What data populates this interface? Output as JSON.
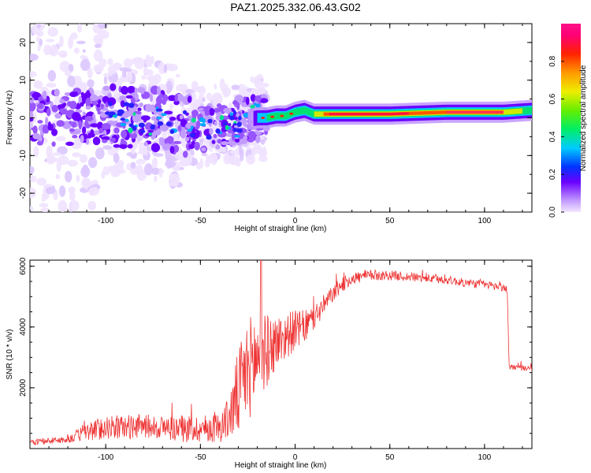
{
  "title": "PAZ1.2025.332.06.43.G02",
  "chart_data": [
    {
      "type": "heatmap",
      "xlabel": "Height of straight line (km)",
      "ylabel": "Frequency (Hz)",
      "xlim": [
        -140,
        125
      ],
      "ylim": [
        -25,
        25
      ],
      "xticks": [
        -100,
        -50,
        0,
        50,
        100
      ],
      "yticks": [
        -20,
        -10,
        0,
        10,
        20
      ],
      "xtick_labels": [
        "-100",
        "-50",
        "0",
        "50",
        "100"
      ],
      "ytick_labels": [
        "-20",
        "-10",
        "0",
        "10",
        "20"
      ],
      "colorbar": {
        "label": "Normalized spectral amplitude",
        "range": [
          0,
          1
        ],
        "ticks": [
          0.0,
          0.2,
          0.4,
          0.6,
          0.8
        ],
        "tick_labels": [
          "0.0",
          "0.2",
          "0.4",
          "0.6",
          "0.8"
        ]
      },
      "ridge": [
        {
          "x": -140,
          "y": 0.0
        },
        {
          "x": -120,
          "y": 0.0
        },
        {
          "x": -100,
          "y": 0.5
        },
        {
          "x": -80,
          "y": 0.0
        },
        {
          "x": -60,
          "y": -2.0
        },
        {
          "x": -45,
          "y": -2.5
        },
        {
          "x": -30,
          "y": -1.0
        },
        {
          "x": -20,
          "y": 0.0
        },
        {
          "x": -15,
          "y": 0.0
        },
        {
          "x": -10,
          "y": 0.5
        },
        {
          "x": -5,
          "y": 0.5
        },
        {
          "x": 0,
          "y": 1.5
        },
        {
          "x": 5,
          "y": 2.0
        },
        {
          "x": 10,
          "y": 1.0
        },
        {
          "x": 50,
          "y": 1.0
        },
        {
          "x": 80,
          "y": 1.5
        },
        {
          "x": 110,
          "y": 1.5
        },
        {
          "x": 125,
          "y": 2.0
        }
      ]
    },
    {
      "type": "line",
      "xlabel": "Height of straight line (km)",
      "ylabel": "SNR (10 * v/v)",
      "xlim": [
        -140,
        125
      ],
      "ylim": [
        0,
        6200
      ],
      "xticks": [
        -100,
        -50,
        0,
        50,
        100
      ],
      "yticks": [
        2000,
        4000,
        6000
      ],
      "xtick_labels": [
        "-100",
        "-50",
        "0",
        "50",
        "100"
      ],
      "ytick_labels": [
        "2000",
        "4000",
        "6000"
      ],
      "color": "#ee3333",
      "series": [
        {
          "name": "SNR",
          "x": [
            -140,
            -130,
            -120,
            -110,
            -100,
            -90,
            -80,
            -70,
            -60,
            -50,
            -40,
            -35,
            -30,
            -25,
            -20,
            -15,
            -10,
            -5,
            0,
            5,
            10,
            15,
            20,
            25,
            30,
            40,
            50,
            60,
            70,
            80,
            90,
            100,
            110,
            112,
            113,
            120,
            125
          ],
          "values": [
            200,
            250,
            300,
            550,
            700,
            700,
            750,
            700,
            650,
            650,
            700,
            1000,
            1800,
            2600,
            3000,
            3200,
            3500,
            3700,
            3900,
            4000,
            4300,
            4700,
            5100,
            5400,
            5600,
            5700,
            5700,
            5650,
            5600,
            5550,
            5450,
            5400,
            5300,
            5200,
            2700,
            2650,
            2600
          ],
          "noise": [
            100,
            100,
            120,
            300,
            400,
            400,
            400,
            400,
            450,
            450,
            500,
            700,
            1500,
            1700,
            1600,
            1200,
            900,
            800,
            650,
            550,
            450,
            350,
            280,
            250,
            220,
            180,
            160,
            150,
            140,
            140,
            140,
            140,
            140,
            140,
            100,
            90,
            90
          ]
        }
      ]
    }
  ]
}
